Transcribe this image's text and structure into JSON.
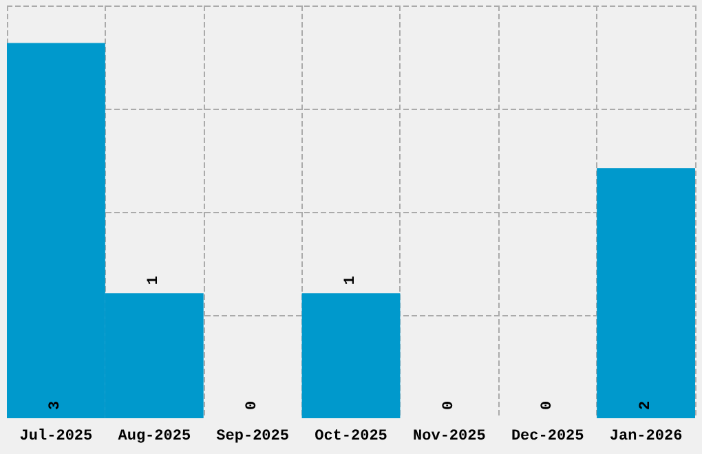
{
  "chart_data": {
    "type": "bar",
    "categories": [
      "Jul-2025",
      "Aug-2025",
      "Sep-2025",
      "Oct-2025",
      "Nov-2025",
      "Dec-2025",
      "Jan-2026"
    ],
    "values": [
      3,
      1,
      0,
      1,
      0,
      0,
      2
    ],
    "color": "#0099cc",
    "data_labels": true,
    "grid": true,
    "ylim": [
      0,
      3.3
    ],
    "yticks": [
      {
        "value": 0,
        "label": null
      },
      {
        "value": 0.825,
        "label": null
      },
      {
        "value": 1.65,
        "label": null
      },
      {
        "value": 2.475,
        "label": null
      },
      {
        "value": 3.3,
        "label": null
      }
    ],
    "tick_labels": "x"
  }
}
